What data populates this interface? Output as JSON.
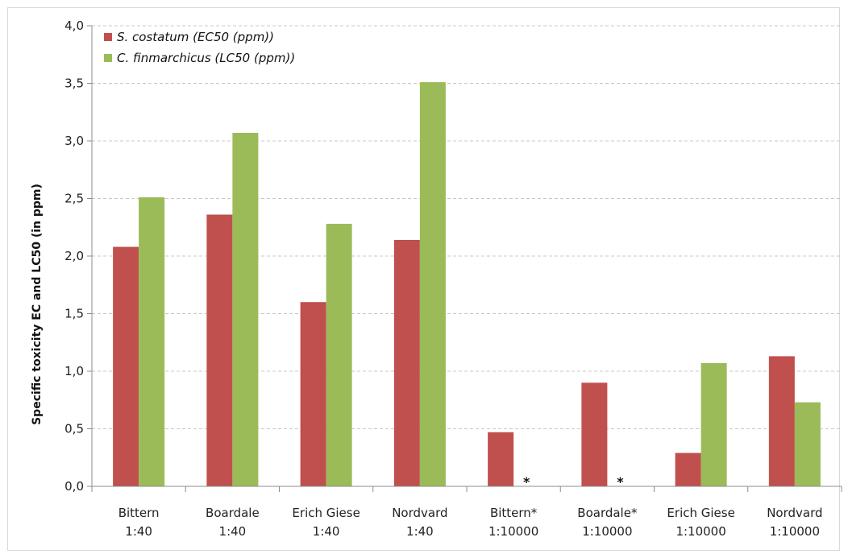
{
  "chart_data": {
    "type": "bar",
    "title": "",
    "xlabel": "",
    "ylabel": "Specific toxicity EC and LC50 (in ppm)",
    "ylim": [
      0,
      4
    ],
    "yticks": [
      "0,0",
      "0,5",
      "1,0",
      "1,5",
      "2,0",
      "2,5",
      "3,0",
      "3,5",
      "4,0"
    ],
    "grid": true,
    "legend_position": "top-left",
    "categories": [
      [
        "Bittern",
        "1:40"
      ],
      [
        "Boardale",
        "1:40"
      ],
      [
        "Erich Giese",
        "1:40"
      ],
      [
        "Nordvard",
        "1:40"
      ],
      [
        "Bittern*",
        "1:10000"
      ],
      [
        "Boardale*",
        "1:10000"
      ],
      [
        "Erich Giese",
        "1:10000"
      ],
      [
        "Nordvard",
        "1:10000"
      ]
    ],
    "series": [
      {
        "name": "S. costatum (EC50 (ppm))",
        "color": "#c0504d",
        "values": [
          2.08,
          2.36,
          1.6,
          2.14,
          0.47,
          0.9,
          0.29,
          1.13
        ]
      },
      {
        "name": "C. finmarchicus (LC50 (ppm))",
        "color": "#9bbb59",
        "values": [
          2.51,
          3.07,
          2.28,
          3.51,
          null,
          null,
          1.07,
          0.73
        ]
      }
    ],
    "annotations": [
      {
        "category_index": 4,
        "series_index": 1,
        "text": "*"
      },
      {
        "category_index": 5,
        "series_index": 1,
        "text": "*"
      }
    ]
  }
}
